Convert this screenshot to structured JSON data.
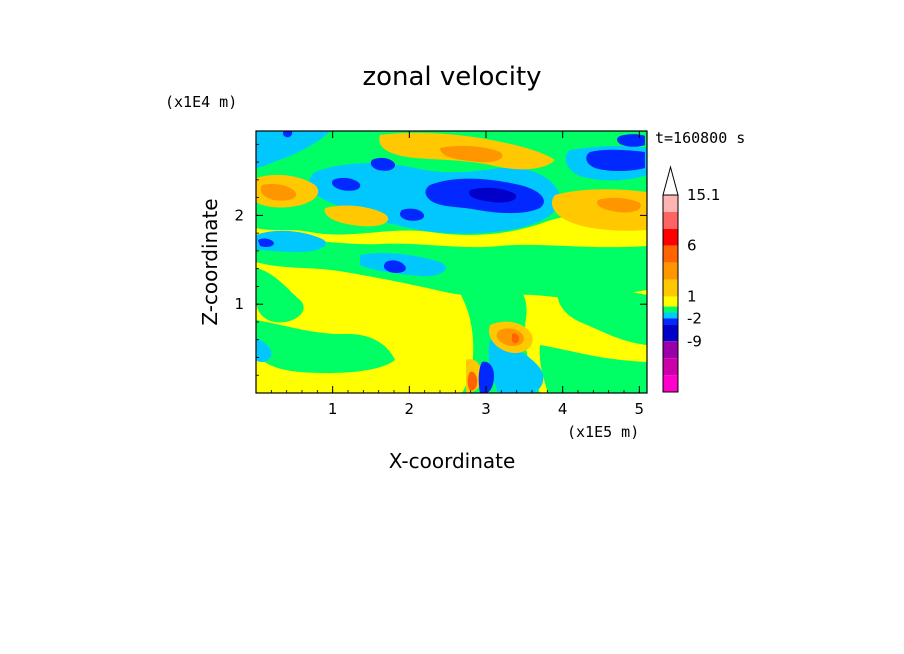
{
  "chart_data": {
    "type": "heatmap",
    "title": "zonal velocity",
    "xlabel": "X-coordinate",
    "ylabel": "Z-coordinate",
    "x_unit": "(x1E5 m)",
    "y_unit": "(x1E4 m)",
    "time_label": "t=160800 s",
    "xlim": [
      0.0,
      5.1
    ],
    "ylim": [
      0.0,
      2.95
    ],
    "x_ticks": [
      "1",
      "2",
      "3",
      "4",
      "5"
    ],
    "y_ticks": [
      "1",
      "2"
    ],
    "colorbar": {
      "levels": [
        -15,
        -12,
        -9,
        -6,
        -2,
        -1,
        0,
        1,
        2,
        4,
        6,
        9,
        12,
        15.1
      ],
      "colors": [
        "#ff00cc",
        "#cc00aa",
        "#9900aa",
        "#0000c8",
        "#0028ff",
        "#00c8ff",
        "#00ff64",
        "#ffff00",
        "#ffc800",
        "#ff9600",
        "#ff6400",
        "#ff0000",
        "#ff6464",
        "#ffb4b4"
      ],
      "labels": [
        "15.1",
        "6",
        "1",
        "-2",
        "-9"
      ],
      "label_values": [
        15.1,
        6,
        1,
        -2,
        -9
      ]
    }
  }
}
